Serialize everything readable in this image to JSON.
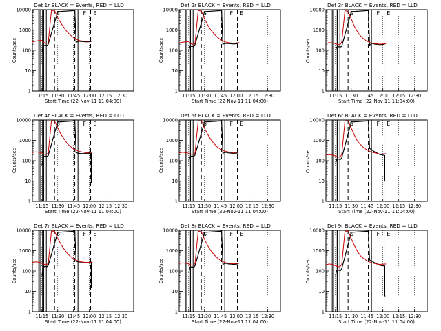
{
  "figure": {
    "xlabel": "Start Time (22-Nov-11 11:04:00)",
    "ylabel": "Counts/sec",
    "legend_text": "BLACK = Events, RED = LLD",
    "series_colors": {
      "events": "#000000",
      "lld": "#cc0000"
    }
  },
  "chart_data": [
    {
      "type": "line",
      "title": "Det 1r",
      "xlabel": "Start Time (22-Nov-11 11:04:00)",
      "ylabel": "Counts/sec",
      "xlim": [
        11.1,
        12.7
      ],
      "ylim": [
        1,
        10000
      ],
      "yscale": "log",
      "xticks": [
        "11:15",
        "11:30",
        "11:45",
        "12:00",
        "12:15",
        "12:30"
      ],
      "yticks": [
        "1",
        "10",
        "100",
        "1000",
        "10000"
      ],
      "markers": [
        "S",
        "F",
        "E"
      ],
      "series": [
        {
          "name": "Events",
          "x": [
            11.25,
            11.266,
            11.266,
            11.3,
            11.33,
            11.35,
            11.5,
            11.77,
            11.79,
            11.83,
            11.88,
            11.93,
            11.95,
            12.0,
            12.03
          ],
          "y": [
            80,
            150,
            160,
            180,
            170,
            200,
            8000,
            9000,
            250,
            280,
            270,
            265,
            260,
            265,
            270
          ]
        },
        {
          "name": "LLD",
          "x": [
            11.1,
            11.15,
            11.2,
            11.25,
            11.3,
            11.33,
            11.35,
            11.4,
            11.45,
            11.5,
            11.55,
            11.6,
            11.65,
            11.7,
            11.75,
            11.8,
            11.85,
            11.9,
            11.95,
            12.0,
            12.05
          ],
          "y": [
            260,
            280,
            300,
            310,
            220,
            220,
            240,
            9000,
            9000,
            4000,
            2200,
            1300,
            800,
            560,
            420,
            340,
            300,
            285,
            275,
            280,
            290
          ]
        }
      ]
    },
    {
      "type": "line",
      "title": "Det 2r",
      "xlabel": "Start Time (22-Nov-11 11:04:00)",
      "ylabel": "Counts/sec",
      "xlim": [
        11.1,
        12.7
      ],
      "ylim": [
        1,
        10000
      ],
      "yscale": "log",
      "xticks": [
        "11:15",
        "11:30",
        "11:45",
        "12:00",
        "12:15",
        "12:30"
      ],
      "yticks": [
        "1",
        "10",
        "100",
        "1000",
        "10000"
      ],
      "markers": [
        "S",
        "F",
        "E"
      ],
      "series": [
        {
          "name": "Events",
          "x": [
            11.25,
            11.266,
            11.266,
            11.3,
            11.33,
            11.35,
            11.5,
            11.77,
            11.79,
            11.83,
            11.88,
            11.93,
            11.95,
            12.0,
            12.03
          ],
          "y": [
            90,
            140,
            150,
            160,
            150,
            190,
            8000,
            9000,
            200,
            220,
            215,
            210,
            205,
            210,
            215
          ]
        },
        {
          "name": "LLD",
          "x": [
            11.1,
            11.15,
            11.2,
            11.25,
            11.3,
            11.33,
            11.35,
            11.4,
            11.45,
            11.5,
            11.55,
            11.6,
            11.65,
            11.7,
            11.75,
            11.8,
            11.85,
            11.9,
            11.95,
            12.0,
            12.05
          ],
          "y": [
            230,
            250,
            260,
            270,
            200,
            200,
            220,
            9000,
            8500,
            3500,
            1800,
            1000,
            650,
            450,
            340,
            280,
            250,
            235,
            225,
            230,
            240
          ]
        }
      ]
    },
    {
      "type": "line",
      "title": "Det 3r",
      "xlabel": "Start Time (22-Nov-11 11:04:00)",
      "ylabel": "Counts/sec",
      "xlim": [
        11.1,
        12.7
      ],
      "ylim": [
        1,
        10000
      ],
      "yscale": "log",
      "xticks": [
        "11:15",
        "11:30",
        "11:45",
        "12:00",
        "12:15",
        "12:30"
      ],
      "yticks": [
        "1",
        "10",
        "100",
        "1000",
        "10000"
      ],
      "markers": [
        "S",
        "F",
        "E"
      ],
      "series": [
        {
          "name": "Events",
          "x": [
            11.25,
            11.266,
            11.266,
            11.3,
            11.33,
            11.35,
            11.5,
            11.77,
            11.79,
            11.83,
            11.88,
            11.93,
            11.95,
            12.0,
            12.03
          ],
          "y": [
            100,
            130,
            140,
            150,
            145,
            160,
            8000,
            9000,
            180,
            220,
            200,
            195,
            190,
            195,
            200
          ]
        },
        {
          "name": "LLD",
          "x": [
            11.1,
            11.15,
            11.2,
            11.25,
            11.3,
            11.33,
            11.35,
            11.4,
            11.45,
            11.5,
            11.55,
            11.6,
            11.65,
            11.7,
            11.75,
            11.8,
            11.85,
            11.9,
            11.95,
            12.0,
            12.05
          ],
          "y": [
            220,
            240,
            230,
            210,
            190,
            200,
            260,
            9000,
            8000,
            3500,
            1500,
            800,
            500,
            350,
            280,
            240,
            220,
            210,
            200,
            205,
            210
          ]
        }
      ]
    },
    {
      "type": "line",
      "title": "Det 4r",
      "xlabel": "Start Time (22-Nov-11 11:04:00)",
      "ylabel": "Counts/sec",
      "xlim": [
        11.1,
        12.7
      ],
      "ylim": [
        1,
        10000
      ],
      "yscale": "log",
      "xticks": [
        "11:15",
        "11:30",
        "11:45",
        "12:00",
        "12:15",
        "12:30"
      ],
      "yticks": [
        "1",
        "10",
        "100",
        "1000",
        "10000"
      ],
      "markers": [
        "S",
        "F",
        "E"
      ],
      "series": [
        {
          "name": "Events",
          "x": [
            11.25,
            11.266,
            11.266,
            11.3,
            11.33,
            11.35,
            11.5,
            11.77,
            11.79,
            11.83,
            11.88,
            11.93,
            11.95,
            12.0,
            12.03,
            12.03,
            12.04
          ],
          "y": [
            60,
            110,
            140,
            170,
            160,
            180,
            8000,
            9000,
            250,
            230,
            220,
            225,
            230,
            235,
            230,
            8,
            8
          ]
        },
        {
          "name": "LLD",
          "x": [
            11.1,
            11.15,
            11.2,
            11.25,
            11.3,
            11.33,
            11.35,
            11.4,
            11.45,
            11.5,
            11.55,
            11.6,
            11.65,
            11.7,
            11.75,
            11.8,
            11.85,
            11.9,
            11.95,
            12.0,
            12.05
          ],
          "y": [
            250,
            270,
            260,
            240,
            200,
            210,
            240,
            9000,
            9000,
            4000,
            2000,
            1200,
            700,
            500,
            380,
            320,
            280,
            260,
            250,
            255,
            260
          ]
        }
      ]
    },
    {
      "type": "line",
      "title": "Det 5r",
      "xlabel": "Start Time (22-Nov-11 11:04:00)",
      "ylabel": "Counts/sec",
      "xlim": [
        11.1,
        12.7
      ],
      "ylim": [
        1,
        10000
      ],
      "yscale": "log",
      "xticks": [
        "11:15",
        "11:30",
        "11:45",
        "12:00",
        "12:15",
        "12:30"
      ],
      "yticks": [
        "1",
        "10",
        "100",
        "1000",
        "10000"
      ],
      "markers": [
        "S",
        "F",
        "E"
      ],
      "series": [
        {
          "name": "Events",
          "x": [
            11.25,
            11.266,
            11.266,
            11.3,
            11.33,
            11.35,
            11.5,
            11.77,
            11.79,
            11.83,
            11.88,
            11.93,
            11.95,
            12.0,
            12.03
          ],
          "y": [
            90,
            140,
            150,
            170,
            160,
            190,
            8000,
            9000,
            230,
            260,
            240,
            235,
            230,
            235,
            240
          ]
        },
        {
          "name": "LLD",
          "x": [
            11.1,
            11.15,
            11.2,
            11.25,
            11.3,
            11.33,
            11.35,
            11.4,
            11.45,
            11.5,
            11.55,
            11.6,
            11.65,
            11.7,
            11.75,
            11.8,
            11.85,
            11.9,
            11.95,
            12.0,
            12.05
          ],
          "y": [
            240,
            260,
            250,
            230,
            200,
            210,
            240,
            9000,
            9000,
            4000,
            2000,
            1100,
            700,
            480,
            370,
            310,
            280,
            260,
            250,
            255,
            265
          ]
        }
      ]
    },
    {
      "type": "line",
      "title": "Det 6r",
      "xlabel": "Start Time (22-Nov-11 11:04:00)",
      "ylabel": "Counts/sec",
      "xlim": [
        11.1,
        12.7
      ],
      "ylim": [
        1,
        10000
      ],
      "yscale": "log",
      "xticks": [
        "11:15",
        "11:30",
        "11:45",
        "12:00",
        "12:15",
        "12:30"
      ],
      "yticks": [
        "1",
        "10",
        "100",
        "1000",
        "10000"
      ],
      "markers": [
        "S",
        "F",
        "E"
      ],
      "series": [
        {
          "name": "Events",
          "x": [
            11.25,
            11.266,
            11.266,
            11.3,
            11.33,
            11.35,
            11.5,
            11.77,
            11.79,
            11.83,
            11.88,
            11.93,
            11.95,
            12.0,
            12.03,
            12.03,
            12.04
          ],
          "y": [
            70,
            100,
            110,
            120,
            115,
            140,
            8000,
            9000,
            400,
            330,
            260,
            220,
            200,
            190,
            180,
            10,
            10
          ]
        },
        {
          "name": "LLD",
          "x": [
            11.1,
            11.15,
            11.2,
            11.25,
            11.3,
            11.33,
            11.35,
            11.4,
            11.45,
            11.5,
            11.55,
            11.6,
            11.65,
            11.7,
            11.75,
            11.8,
            11.85,
            11.9,
            11.95,
            12.0,
            12.05
          ],
          "y": [
            190,
            200,
            190,
            170,
            150,
            160,
            200,
            9000,
            9000,
            4000,
            1800,
            900,
            600,
            420,
            340,
            280,
            250,
            230,
            210,
            215,
            220
          ]
        }
      ]
    },
    {
      "type": "line",
      "title": "Det 7r",
      "xlabel": "Start Time (22-Nov-11 11:04:00)",
      "ylabel": "Counts/sec",
      "xlim": [
        11.1,
        12.7
      ],
      "ylim": [
        1,
        10000
      ],
      "yscale": "log",
      "xticks": [
        "11:15",
        "11:30",
        "11:45",
        "12:00",
        "12:15",
        "12:30"
      ],
      "yticks": [
        "1",
        "10",
        "100",
        "1000",
        "10000"
      ],
      "markers": [
        "S",
        "F",
        "E"
      ],
      "series": [
        {
          "name": "Events",
          "x": [
            11.25,
            11.266,
            11.266,
            11.3,
            11.33,
            11.35,
            11.5,
            11.77,
            11.79,
            11.83,
            11.88,
            11.93,
            11.95,
            12.0,
            12.03,
            12.03,
            12.04
          ],
          "y": [
            60,
            130,
            150,
            170,
            160,
            190,
            8000,
            9000,
            300,
            280,
            270,
            265,
            260,
            265,
            270,
            15,
            15
          ]
        },
        {
          "name": "LLD",
          "x": [
            11.1,
            11.15,
            11.2,
            11.25,
            11.3,
            11.33,
            11.35,
            11.4,
            11.45,
            11.5,
            11.55,
            11.6,
            11.65,
            11.7,
            11.75,
            11.8,
            11.85,
            11.9,
            11.95,
            12.0,
            12.05
          ],
          "y": [
            260,
            280,
            270,
            250,
            200,
            210,
            240,
            9000,
            9000,
            4000,
            2100,
            1200,
            750,
            520,
            400,
            330,
            290,
            270,
            260,
            265,
            275
          ]
        }
      ]
    },
    {
      "type": "line",
      "title": "Det 8r",
      "xlabel": "Start Time (22-Nov-11 11:04:00)",
      "ylabel": "Counts/sec",
      "xlim": [
        11.1,
        12.7
      ],
      "ylim": [
        1,
        10000
      ],
      "yscale": "log",
      "xticks": [
        "11:15",
        "11:30",
        "11:45",
        "12:00",
        "12:15",
        "12:30"
      ],
      "yticks": [
        "1",
        "10",
        "100",
        "1000",
        "10000"
      ],
      "markers": [
        "S",
        "F",
        "E"
      ],
      "series": [
        {
          "name": "Events",
          "x": [
            11.25,
            11.266,
            11.266,
            11.3,
            11.33,
            11.35,
            11.5,
            11.77,
            11.79,
            11.83,
            11.88,
            11.93,
            11.95,
            12.0,
            12.03
          ],
          "y": [
            80,
            130,
            150,
            160,
            150,
            180,
            8000,
            9000,
            210,
            240,
            220,
            215,
            210,
            215,
            220
          ]
        },
        {
          "name": "LLD",
          "x": [
            11.1,
            11.15,
            11.2,
            11.25,
            11.3,
            11.33,
            11.35,
            11.4,
            11.45,
            11.5,
            11.55,
            11.6,
            11.65,
            11.7,
            11.75,
            11.8,
            11.85,
            11.9,
            11.95,
            12.0,
            12.05
          ],
          "y": [
            230,
            250,
            240,
            220,
            190,
            200,
            230,
            9000,
            8500,
            3600,
            1800,
            1000,
            650,
            450,
            340,
            280,
            250,
            235,
            225,
            230,
            240
          ]
        }
      ]
    },
    {
      "type": "line",
      "title": "Det 9r",
      "xlabel": "Start Time (22-Nov-11 11:04:00)",
      "ylabel": "Counts/sec",
      "xlim": [
        11.1,
        12.7
      ],
      "ylim": [
        1,
        10000
      ],
      "yscale": "log",
      "xticks": [
        "11:15",
        "11:30",
        "11:45",
        "12:00",
        "12:15",
        "12:30"
      ],
      "yticks": [
        "1",
        "10",
        "100",
        "1000",
        "10000"
      ],
      "markers": [
        "S",
        "F",
        "E"
      ],
      "series": [
        {
          "name": "Events",
          "x": [
            11.25,
            11.266,
            11.266,
            11.3,
            11.33,
            11.35,
            11.5,
            11.77,
            11.79,
            11.83,
            11.88,
            11.93,
            11.95,
            12.0,
            12.03,
            12.03,
            12.04
          ],
          "y": [
            60,
            90,
            100,
            110,
            105,
            130,
            8000,
            9000,
            350,
            300,
            240,
            210,
            190,
            180,
            175,
            6,
            6
          ]
        },
        {
          "name": "LLD",
          "x": [
            11.1,
            11.15,
            11.2,
            11.25,
            11.3,
            11.33,
            11.35,
            11.4,
            11.45,
            11.5,
            11.55,
            11.6,
            11.65,
            11.7,
            11.75,
            11.8,
            11.85,
            11.9,
            11.95,
            12.0,
            12.05
          ],
          "y": [
            200,
            220,
            210,
            180,
            160,
            170,
            210,
            9000,
            9000,
            4000,
            1800,
            900,
            550,
            400,
            320,
            270,
            240,
            220,
            210,
            215,
            220
          ]
        }
      ]
    }
  ]
}
